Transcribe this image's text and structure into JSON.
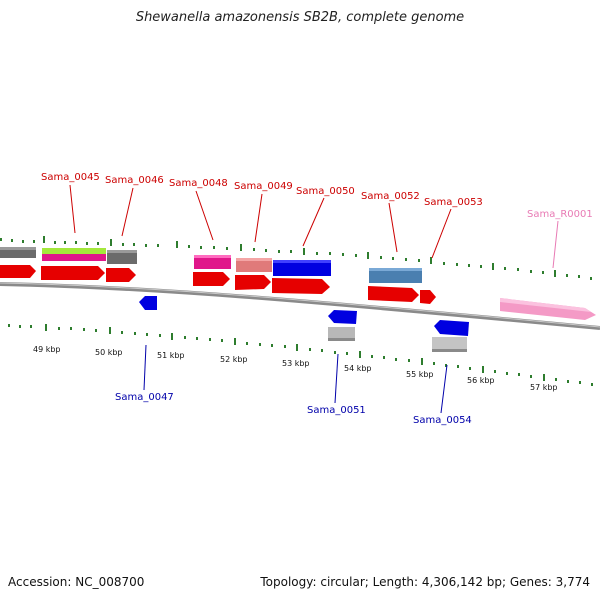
{
  "title": "Shewanella amazonensis SB2B, complete genome",
  "footer": {
    "accession": "Accession: NC_008700",
    "summary": "Topology: circular; Length: 4,306,142 bp; Genes: 3,774"
  },
  "colors": {
    "backbone": "#8a8a8a",
    "tick": "#2e7d2e",
    "label_forward": "#cc0000",
    "label_reverse": "#0000aa",
    "label_rna": "#e87ab4"
  },
  "scale_labels": [
    "49 kbp",
    "50 kbp",
    "51 kbp",
    "52 kbp",
    "53 kbp",
    "54 kbp",
    "55 kbp",
    "56 kbp",
    "57 kbp"
  ],
  "gene_labels": {
    "forward": [
      "Sama_0045",
      "Sama_0046",
      "Sama_0048",
      "Sama_0049",
      "Sama_0050",
      "Sama_0052",
      "Sama_0053"
    ],
    "reverse": [
      "Sama_0047",
      "Sama_0051",
      "Sama_0054"
    ],
    "rna": [
      "Sama_R0001"
    ]
  }
}
